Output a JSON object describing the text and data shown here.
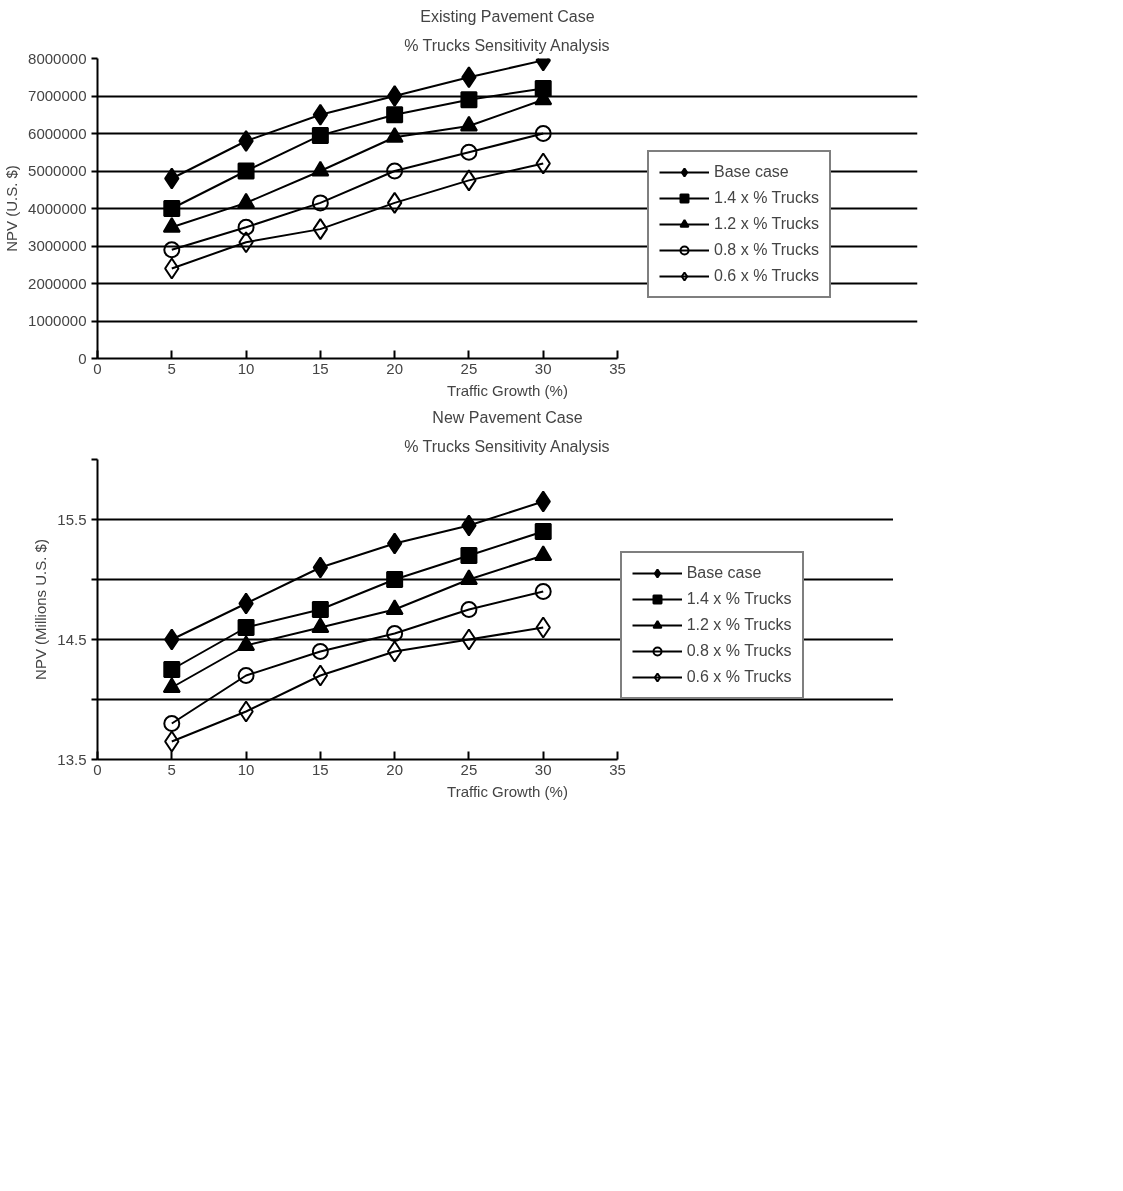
{
  "chart_data": [
    {
      "type": "line",
      "title": "Existing Pavement Case",
      "subtitle": "% Trucks Sensitivity Analysis",
      "xlabel": "Traffic Growth (%)",
      "ylabel": "NPV (U.S. $)",
      "x": [
        5,
        10,
        15,
        20,
        25,
        30
      ],
      "xlim": [
        0,
        35
      ],
      "xticks": [
        0,
        5,
        10,
        15,
        20,
        25,
        30,
        35
      ],
      "ylim": [
        0,
        8000000
      ],
      "yticks": [
        0,
        1000000,
        2000000,
        3000000,
        4000000,
        5000000,
        6000000,
        7000000,
        8000000
      ],
      "grid": "y",
      "legend": "right",
      "line_style": "solid",
      "series": [
        {
          "name": "Base case",
          "color": "#000000",
          "marker": "diamond",
          "values": [
            4800000,
            5800000,
            6500000,
            7000000,
            7500000,
            7950000
          ]
        },
        {
          "name": "1.4 x % Trucks",
          "color": "#000000",
          "marker": "square",
          "values": [
            4000000,
            5000000,
            5950000,
            6500000,
            6900000,
            7200000
          ]
        },
        {
          "name": "1.2 x % Trucks",
          "color": "#000000",
          "marker": "triangle",
          "values": [
            3500000,
            4150000,
            5000000,
            5900000,
            6200000,
            6900000
          ]
        },
        {
          "name": "0.8 x % Trucks",
          "color": "#000000",
          "marker": "circle",
          "values": [
            2900000,
            3500000,
            4150000,
            5000000,
            5500000,
            6000000
          ]
        },
        {
          "name": "0.6 x % Trucks",
          "color": "#000000",
          "marker": "diamond",
          "values": [
            2400000,
            3100000,
            3450000,
            4150000,
            4750000,
            5200000
          ]
        }
      ]
    },
    {
      "type": "line",
      "title": "New Pavement Case",
      "subtitle": "% Trucks Sensitivity Analysis",
      "xlabel": "Traffic Growth (%)",
      "ylabel": "NPV (Millions U.S. $)",
      "x": [
        5,
        10,
        15,
        20,
        25,
        30
      ],
      "xlim": [
        0,
        35
      ],
      "xticks": [
        0,
        5,
        10,
        15,
        20,
        25,
        30,
        35
      ],
      "ylim": [
        13.5,
        16
      ],
      "yticks": [
        13.5,
        {
          "value": 14,
          "label": null
        },
        14.5,
        {
          "value": 15,
          "label": null
        },
        15.5,
        {
          "value": 16,
          "label": null
        }
      ],
      "grid": "y",
      "legend": "right",
      "line_style": "solid",
      "series": [
        {
          "name": "Base case",
          "color": "#000000",
          "marker": "diamond",
          "values": [
            14.5,
            14.8,
            15.1,
            15.3,
            15.45,
            15.65
          ]
        },
        {
          "name": "1.4 x % Trucks",
          "color": "#000000",
          "marker": "square",
          "values": [
            14.25,
            14.6,
            14.75,
            15.0,
            15.2,
            15.4
          ]
        },
        {
          "name": "1.2 x % Trucks",
          "color": "#000000",
          "marker": "triangle",
          "values": [
            14.1,
            14.45,
            14.6,
            14.75,
            15.0,
            15.2
          ]
        },
        {
          "name": "0.8 x % Trucks",
          "color": "#000000",
          "marker": "circle",
          "values": [
            13.8,
            14.2,
            14.4,
            14.55,
            14.75,
            14.9
          ]
        },
        {
          "name": "0.6 x % Trucks",
          "color": "#000000",
          "marker": "diamond",
          "values": [
            13.65,
            13.9,
            14.2,
            14.4,
            14.5,
            14.6
          ]
        }
      ]
    }
  ]
}
